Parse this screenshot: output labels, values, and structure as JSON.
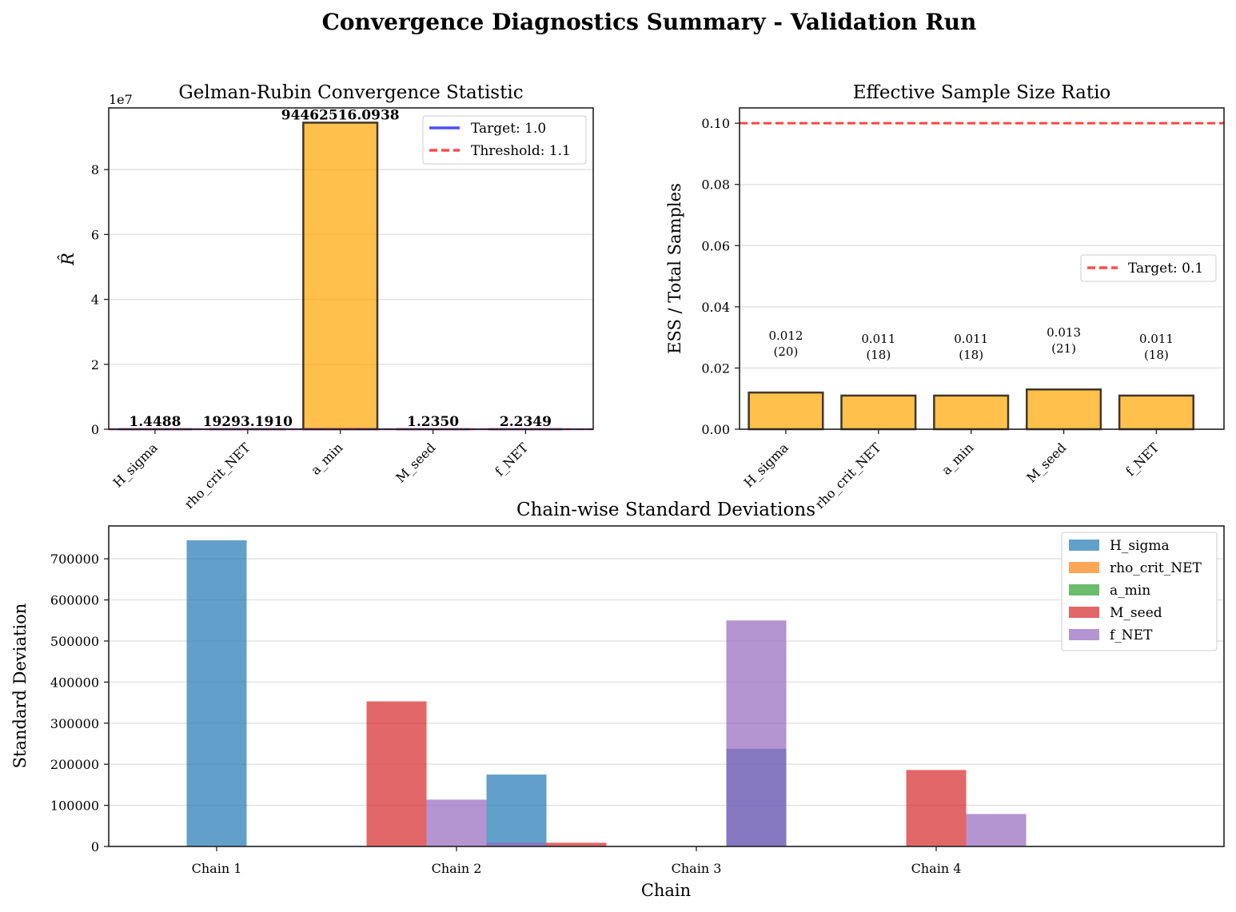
{
  "figure": {
    "suptitle": "Convergence Diagnostics Summary - Validation Run"
  },
  "chart_data": [
    {
      "type": "bar",
      "title": "Gelman-Rubin Convergence Statistic",
      "xlabel": "",
      "ylabel": "R̂",
      "scale_label": "1e7",
      "categories": [
        "H_sigma",
        "rho_crit_NET",
        "a_min",
        "M_seed",
        "f_NET"
      ],
      "values": [
        1.4488,
        19293.191,
        94462516.0938,
        1.235,
        2.2349
      ],
      "value_labels": [
        "1.4488",
        "19293.1910",
        "94462516.0938",
        "1.2350",
        "2.2349"
      ],
      "ylim": [
        0,
        99000000
      ],
      "yticks": [
        0,
        20000000,
        40000000,
        60000000,
        80000000
      ],
      "ytick_labels": [
        "0",
        "2",
        "4",
        "6",
        "8"
      ],
      "bar_color": "#FFA500",
      "reference_lines": [
        {
          "label": "Target: 1.0",
          "value": 1.0,
          "color": "#0000FF",
          "style": "solid"
        },
        {
          "label": "Threshold: 1.1",
          "value": 1.1,
          "color": "#FF0000",
          "style": "dashed"
        }
      ],
      "legend_position": "top-right",
      "grid": "y"
    },
    {
      "type": "bar",
      "title": "Effective Sample Size Ratio",
      "xlabel": "",
      "ylabel": "ESS / Total Samples",
      "categories": [
        "H_sigma",
        "rho_crit_NET",
        "a_min",
        "M_seed",
        "f_NET"
      ],
      "values": [
        0.012,
        0.011,
        0.011,
        0.013,
        0.011
      ],
      "value_labels": [
        "0.012",
        "0.011",
        "0.011",
        "0.013",
        "0.011"
      ],
      "ess_counts": [
        "(20)",
        "(18)",
        "(18)",
        "(21)",
        "(18)"
      ],
      "ylim": [
        0,
        0.105
      ],
      "yticks": [
        0,
        0.02,
        0.04,
        0.06,
        0.08,
        0.1
      ],
      "ytick_labels": [
        "0.00",
        "0.02",
        "0.04",
        "0.06",
        "0.08",
        "0.10"
      ],
      "bar_color": "#FFA500",
      "reference_lines": [
        {
          "label": "Target: 0.1",
          "value": 0.1,
          "color": "#FF0000",
          "style": "dashed"
        }
      ],
      "legend_position": "center-right",
      "grid": "y"
    },
    {
      "type": "bar",
      "title": "Chain-wise Standard Deviations",
      "xlabel": "Chain",
      "ylabel": "Standard Deviation",
      "categories": [
        "Chain 1",
        "Chain 2",
        "Chain 3",
        "Chain 4"
      ],
      "series": [
        {
          "name": "H_sigma",
          "color": "#1f77b4",
          "bars": [
            {
              "x": 0.0,
              "value": 745000
            },
            {
              "x": 1.25,
              "value": 175000
            },
            {
              "x": 2.25,
              "value": 238000
            }
          ]
        },
        {
          "name": "rho_crit_NET",
          "color": "#ff7f0e",
          "bars": []
        },
        {
          "name": "a_min",
          "color": "#2ca02c",
          "bars": []
        },
        {
          "name": "M_seed",
          "color": "#d62728",
          "bars": [
            {
              "x": 0.75,
              "value": 353000
            },
            {
              "x": 1.5,
              "value": 9000
            },
            {
              "x": 3.0,
              "value": 186000
            }
          ]
        },
        {
          "name": "f_NET",
          "color": "#9467bd",
          "bars": [
            {
              "x": 1.0,
              "value": 114000
            },
            {
              "x": 1.25,
              "value": 9000
            },
            {
              "x": 2.25,
              "value": 550000
            },
            {
              "x": 3.25,
              "value": 79000
            }
          ]
        }
      ],
      "ylim": [
        0,
        780000
      ],
      "yticks": [
        0,
        100000,
        200000,
        300000,
        400000,
        500000,
        600000,
        700000
      ],
      "ytick_labels": [
        "0",
        "100000",
        "200000",
        "300000",
        "400000",
        "500000",
        "600000",
        "700000"
      ],
      "legend_position": "top-right",
      "grid": "y"
    }
  ]
}
